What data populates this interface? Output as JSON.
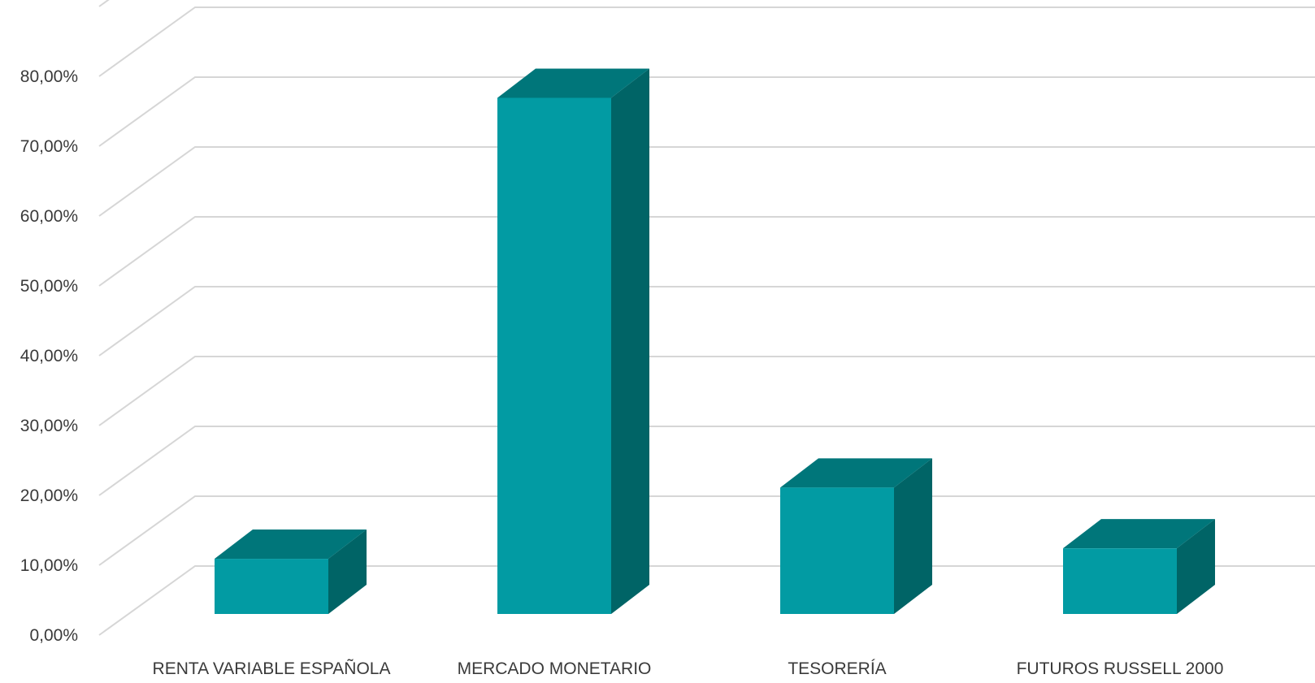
{
  "colors": {
    "bar_front": "#029BA3",
    "bar_top": "#00767A",
    "bar_side": "#006466",
    "grid": "#d6d6d6",
    "text": "#3a3a3a"
  },
  "chart_data": {
    "type": "bar",
    "style": "3d-column",
    "categories": [
      "RENTA VARIABLE ESPAÑOLA",
      "MERCADO MONETARIO",
      "TESORERÍA",
      "FUTUROS RUSSELL 2000"
    ],
    "series": [
      {
        "values": [
          7.9,
          73.9,
          18.1,
          9.4
        ]
      }
    ],
    "y_ticks": [
      "0,00%",
      "10,00%",
      "20,00%",
      "30,00%",
      "40,00%",
      "50,00%",
      "60,00%",
      "70,00%",
      "80,00%"
    ],
    "ylim": [
      0,
      90
    ],
    "y_tick_step": 10,
    "grid": true,
    "legend": "none",
    "title": "",
    "xlabel": "",
    "ylabel": ""
  }
}
